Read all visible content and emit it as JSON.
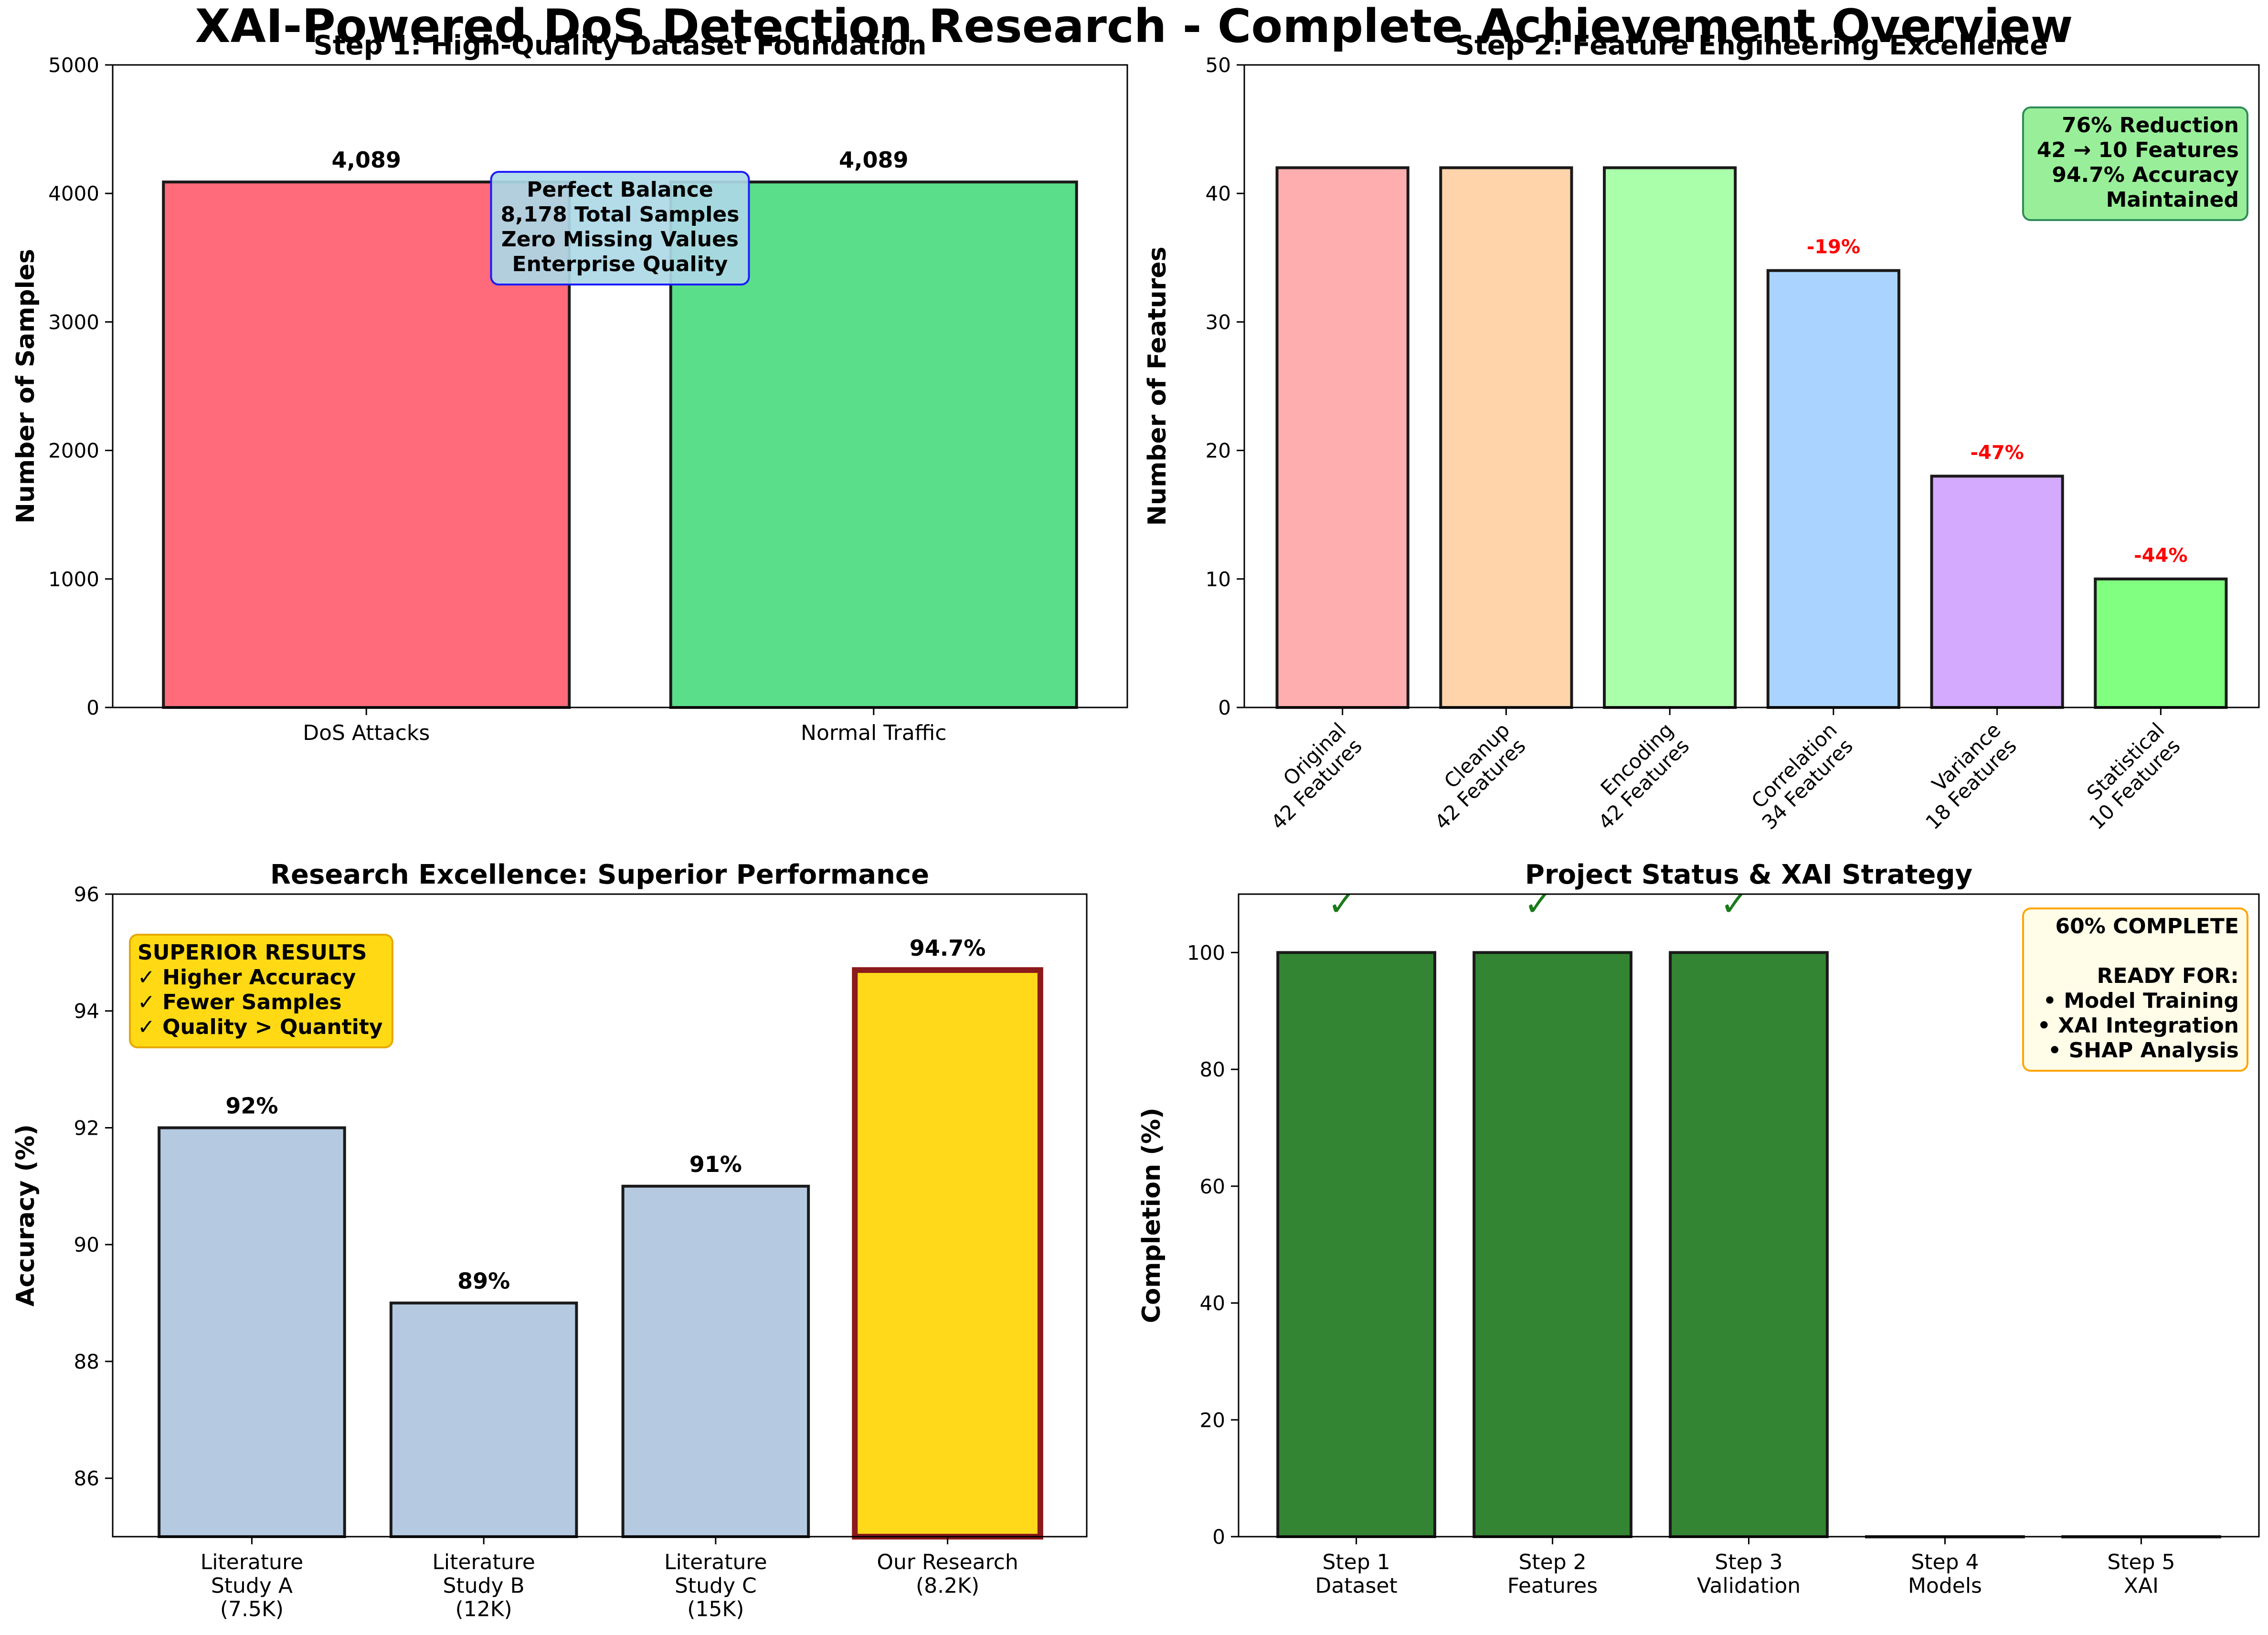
{
  "figure": {
    "suptitle": "XAI-Powered DoS Detection Research - Complete Achievement Overview"
  },
  "chart_data": [
    {
      "id": "dataset",
      "type": "bar",
      "title": "Step 1: High-Quality Dataset Foundation",
      "xlabel": "",
      "ylabel": "Number of Samples",
      "ylim": [
        0,
        5000
      ],
      "yticks": [
        0,
        1000,
        2000,
        3000,
        4000,
        5000
      ],
      "categories": [
        "DoS Attacks",
        "Normal Traffic"
      ],
      "values": [
        4089,
        4089
      ],
      "value_labels": [
        "4,089",
        "4,089"
      ],
      "colors": [
        "#ff6b7a",
        "#5ade8a"
      ],
      "annotation": {
        "lines": [
          "Perfect Balance",
          "8,178 Total Samples",
          "Zero Missing Values",
          "Enterprise Quality"
        ],
        "fill": "#add8e6",
        "edge": "#1a1aff"
      }
    },
    {
      "id": "features",
      "type": "bar",
      "title": "Step 2: Feature Engineering Excellence",
      "xlabel": "",
      "ylabel": "Number of Features",
      "ylim": [
        0,
        50
      ],
      "yticks": [
        0,
        10,
        20,
        30,
        40,
        50
      ],
      "categories": [
        [
          "Original",
          "42 Features"
        ],
        [
          "Cleanup",
          "42 Features"
        ],
        [
          "Encoding",
          "42 Features"
        ],
        [
          "Correlation",
          "34 Features"
        ],
        [
          "Variance",
          "18 Features"
        ],
        [
          "Statistical",
          "10 Features"
        ]
      ],
      "values": [
        42,
        42,
        42,
        34,
        18,
        10
      ],
      "colors": [
        "#ffaeb0",
        "#ffd4aa",
        "#aaffaa",
        "#aad4ff",
        "#d4aaff",
        "#80ff80"
      ],
      "reduction_labels": [
        "",
        "",
        "",
        "-19%",
        "-47%",
        "-44%"
      ],
      "annotation": {
        "lines": [
          "76% Reduction",
          "42 → 10 Features",
          "94.7% Accuracy",
          "Maintained"
        ],
        "fill": "#90ee90",
        "edge": "#2e8b57"
      }
    },
    {
      "id": "accuracy",
      "type": "bar",
      "title": "Research Excellence: Superior Performance",
      "xlabel": "",
      "ylabel": "Accuracy (%)",
      "ylim": [
        85,
        96
      ],
      "yticks": [
        86,
        88,
        90,
        92,
        94,
        96
      ],
      "categories": [
        [
          "Literature",
          "Study A",
          "(7.5K)"
        ],
        [
          "Literature",
          "Study B",
          "(12K)"
        ],
        [
          "Literature",
          "Study C",
          "(15K)"
        ],
        [
          "Our Research",
          "(8.2K)"
        ]
      ],
      "values": [
        92,
        89,
        91,
        94.7
      ],
      "value_labels": [
        "92%",
        "89%",
        "91%",
        "94.7%"
      ],
      "colors": [
        "#b5c9e1",
        "#b5c9e1",
        "#b5c9e1",
        "#ffd91a"
      ],
      "highlight_edge": "#8b1a1a",
      "annotation": {
        "lines": [
          "SUPERIOR RESULTS",
          "✓ Higher Accuracy",
          "✓ Fewer Samples",
          "✓ Quality > Quantity"
        ],
        "fill": "#ffd700",
        "edge": "#e6a800"
      }
    },
    {
      "id": "status",
      "type": "bar",
      "title": "Project Status & XAI Strategy",
      "xlabel": "",
      "ylabel": "Completion (%)",
      "ylim": [
        0,
        110
      ],
      "yticks": [
        0,
        20,
        40,
        60,
        80,
        100
      ],
      "categories": [
        [
          "Step 1",
          "Dataset"
        ],
        [
          "Step 2",
          "Features"
        ],
        [
          "Step 3",
          "Validation"
        ],
        [
          "Step 4",
          "Models"
        ],
        [
          "Step 5",
          "XAI"
        ]
      ],
      "values": [
        100,
        100,
        100,
        0,
        0
      ],
      "colors": [
        "#338533",
        "#338533",
        "#338533",
        "#cccccc",
        "#cccccc"
      ],
      "check_marks": [
        "✓",
        "✓",
        "✓",
        "",
        ""
      ],
      "annotation": {
        "lines": [
          "60% COMPLETE",
          "",
          "READY FOR:",
          "• Model Training",
          "• XAI Integration",
          "• SHAP Analysis"
        ],
        "fill": "#fffde6",
        "edge": "#ffa500"
      }
    }
  ]
}
